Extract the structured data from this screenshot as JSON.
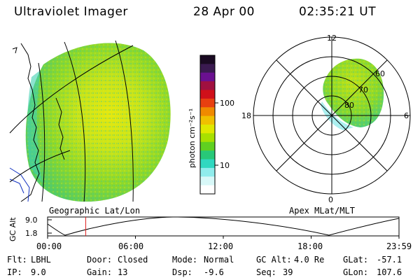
{
  "header": {
    "instrument": "Ultraviolet Imager",
    "date": "28 Apr 00",
    "time": "02:35:21 UT"
  },
  "colorbar": {
    "unit_label": "photon cm⁻²s⁻¹",
    "ticks": [
      "100",
      "10"
    ],
    "colors": [
      "#1a0a22",
      "#3a1a50",
      "#6a1090",
      "#a01040",
      "#d0101a",
      "#e84010",
      "#f08a00",
      "#f0c000",
      "#e0e800",
      "#a8e000",
      "#60d020",
      "#28c878",
      "#30d8c0",
      "#90ecec",
      "#d8f8f8",
      "#ffffff"
    ]
  },
  "polar": {
    "lat_labels": [
      "60",
      "70",
      "80"
    ],
    "mlt_labels": {
      "top": "12",
      "left": "18",
      "right": "6",
      "bottom": "0"
    }
  },
  "left_map": {
    "caption": "Geographic Lat/Lon"
  },
  "right_map": {
    "caption": "Apex MLat/MLT"
  },
  "altitude_plot": {
    "ylabel": "GC Alt",
    "y_ticks": [
      "9.0",
      "1.8"
    ],
    "x_ticks": [
      "00:00",
      "06:00",
      "12:00",
      "18:00",
      "23:59"
    ],
    "current_time_fraction": 0.1085,
    "marker_color": "#e02020"
  },
  "footer": {
    "row1": [
      {
        "label": "Flt:",
        "value": "LBHL"
      },
      {
        "label": "Door:",
        "value": "Closed"
      },
      {
        "label": "Mode:",
        "value": "Normal"
      },
      {
        "label": "GC Alt:",
        "value": "4.0 Re"
      },
      {
        "label": "GLat:",
        "value": "-57.1"
      }
    ],
    "row2": [
      {
        "label": "IP:",
        "value": "9.0"
      },
      {
        "label": "Gain:",
        "value": "13"
      },
      {
        "label": "Dsp:",
        "value": "-9.6"
      },
      {
        "label": "Seq:",
        "value": "39"
      },
      {
        "label": "GLon:",
        "value": "107.6"
      }
    ]
  }
}
